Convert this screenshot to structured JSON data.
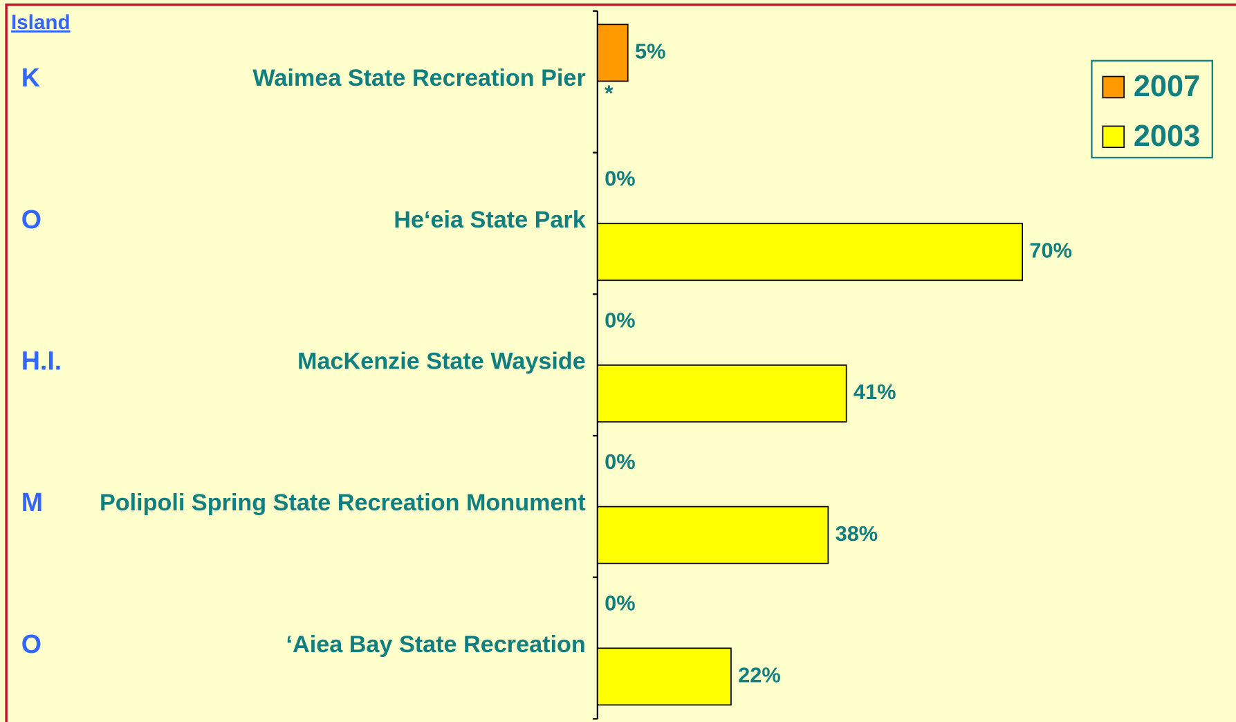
{
  "header": {
    "title": "Island",
    "islands": [
      "K",
      "O",
      "H.I.",
      "M",
      "O"
    ]
  },
  "chart_data": {
    "type": "barh",
    "categories": [
      "Waimea State Recreation Pier",
      "He‘eia State Park",
      "MacKenzie State Wayside",
      "Polipoli Spring State Recreation Monument",
      "‘Aiea Bay State Recreation"
    ],
    "series": [
      {
        "name": "2007",
        "color": "#ff9900",
        "values": [
          5,
          0,
          0,
          0,
          0
        ],
        "value_labels": [
          "5%",
          "0%",
          "0%",
          "0%",
          "0%"
        ]
      },
      {
        "name": "2003",
        "color": "#ffff00",
        "values": [
          null,
          70,
          41,
          38,
          22
        ],
        "value_labels": [
          null,
          "70%",
          "41%",
          "38%",
          "22%"
        ]
      }
    ],
    "xlim": [
      0,
      100
    ],
    "annotations": [
      "*"
    ],
    "legend": "upper right"
  }
}
